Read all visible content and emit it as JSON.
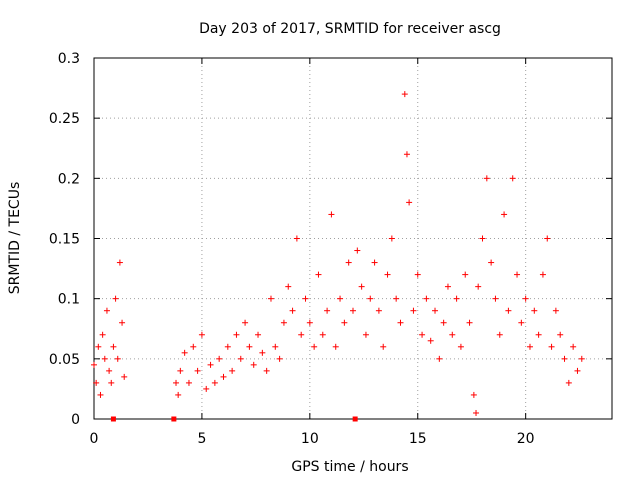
{
  "chart_data": {
    "type": "scatter",
    "title": "Day 203 of 2017, SRMTID for receiver ascg",
    "xlabel": "GPS time / hours",
    "ylabel": "SRMTID / TECUs",
    "xlim": [
      0,
      24
    ],
    "ylim": [
      0,
      0.3
    ],
    "xticks": [
      0,
      5,
      10,
      15,
      20
    ],
    "yticks": [
      0,
      0.05,
      0.1,
      0.15,
      0.2,
      0.25,
      0.3
    ],
    "xtick_labels": [
      "0",
      "5",
      "10",
      "15",
      "20"
    ],
    "ytick_labels": [
      "0",
      "0.05",
      "0.1",
      "0.15",
      "0.2",
      "0.25",
      "0.3"
    ],
    "grid": true,
    "marker": "+",
    "color": "#ff0000",
    "missing_data_markers_x": [
      0.9,
      3.7,
      12.1
    ],
    "series": [
      {
        "name": "SRMTID",
        "x": [
          0.0,
          0.1,
          0.2,
          0.3,
          0.4,
          0.5,
          0.6,
          0.7,
          0.8,
          0.9,
          1.0,
          1.1,
          1.2,
          1.3,
          1.4,
          3.8,
          3.9,
          4.0,
          4.2,
          4.4,
          4.6,
          4.8,
          5.0,
          5.2,
          5.4,
          5.6,
          5.8,
          6.0,
          6.2,
          6.4,
          6.6,
          6.8,
          7.0,
          7.2,
          7.4,
          7.6,
          7.8,
          8.0,
          8.2,
          8.4,
          8.6,
          8.8,
          9.0,
          9.2,
          9.4,
          9.6,
          9.8,
          10.0,
          10.2,
          10.4,
          10.6,
          10.8,
          11.0,
          11.2,
          11.4,
          11.6,
          11.8,
          12.0,
          12.2,
          12.4,
          12.6,
          12.8,
          13.0,
          13.2,
          13.4,
          13.6,
          13.8,
          14.0,
          14.2,
          14.4,
          14.5,
          14.6,
          14.8,
          15.0,
          15.2,
          15.4,
          15.6,
          15.8,
          16.0,
          16.2,
          16.4,
          16.6,
          16.8,
          17.0,
          17.2,
          17.4,
          17.6,
          17.7,
          17.8,
          18.0,
          18.2,
          18.4,
          18.6,
          18.8,
          19.0,
          19.2,
          19.4,
          19.6,
          19.8,
          20.0,
          20.2,
          20.4,
          20.6,
          20.8,
          21.0,
          21.2,
          21.4,
          21.6,
          21.8,
          22.0,
          22.2,
          22.4,
          22.6
        ],
        "y": [
          0.045,
          0.03,
          0.06,
          0.02,
          0.07,
          0.05,
          0.09,
          0.04,
          0.03,
          0.06,
          0.1,
          0.05,
          0.13,
          0.08,
          0.035,
          0.03,
          0.02,
          0.04,
          0.055,
          0.03,
          0.06,
          0.04,
          0.07,
          0.025,
          0.045,
          0.03,
          0.05,
          0.035,
          0.06,
          0.04,
          0.07,
          0.05,
          0.08,
          0.06,
          0.045,
          0.07,
          0.055,
          0.04,
          0.1,
          0.06,
          0.05,
          0.08,
          0.11,
          0.09,
          0.15,
          0.07,
          0.1,
          0.08,
          0.06,
          0.12,
          0.07,
          0.09,
          0.17,
          0.06,
          0.1,
          0.08,
          0.13,
          0.09,
          0.14,
          0.11,
          0.07,
          0.1,
          0.13,
          0.09,
          0.06,
          0.12,
          0.15,
          0.1,
          0.08,
          0.27,
          0.22,
          0.18,
          0.09,
          0.12,
          0.07,
          0.1,
          0.065,
          0.09,
          0.05,
          0.08,
          0.11,
          0.07,
          0.1,
          0.06,
          0.12,
          0.08,
          0.02,
          0.005,
          0.11,
          0.15,
          0.2,
          0.13,
          0.1,
          0.07,
          0.17,
          0.09,
          0.2,
          0.12,
          0.08,
          0.1,
          0.06,
          0.09,
          0.07,
          0.12,
          0.15,
          0.06,
          0.09,
          0.07,
          0.05,
          0.03,
          0.06,
          0.04,
          0.05
        ]
      }
    ]
  }
}
